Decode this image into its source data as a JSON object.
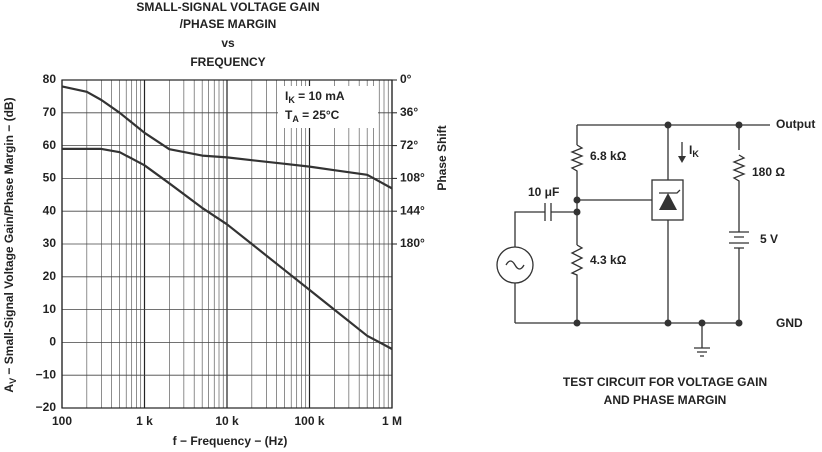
{
  "chart_data": {
    "type": "line",
    "title": [
      "SMALL-SIGNAL VOLTAGE GAIN",
      "/PHASE MARGIN",
      "vs",
      "FREQUENCY"
    ],
    "xlabel": "f − Frequency − (Hz)",
    "ylabel": {
      "main": "A",
      "sub": "V",
      "rest": " − Small-Signal Voltage Gain/Phase Margin − (dB)"
    },
    "y2label": "Phase Shift",
    "annotations": [
      {
        "main": "I",
        "sub": "K",
        "rest": " = 10 mA"
      },
      {
        "main": "T",
        "sub": "A",
        "rest": " = 25°C"
      }
    ],
    "x": [
      100,
      200,
      300,
      500,
      1000,
      2000,
      5000,
      10000,
      20000,
      50000,
      100000,
      200000,
      500000,
      1000000
    ],
    "series": [
      {
        "color": "#333333",
        "values": [
          59,
          59,
          59,
          58,
          54,
          48.5,
          41,
          36,
          30,
          22,
          16,
          10,
          2,
          -2
        ]
      },
      {
        "color": "#333333",
        "axis": "y2",
        "values": [
          7,
          13,
          22,
          36,
          58,
          76,
          83,
          85,
          88,
          92,
          95,
          99,
          104,
          119
        ]
      }
    ],
    "xscale": "log",
    "xlim": [
      100,
      1000000
    ],
    "xticks": [
      100,
      {
        "value": 1000,
        "label": "1 k"
      },
      {
        "value": 10000,
        "label": "10 k"
      },
      {
        "value": 100000,
        "label": "100 k"
      },
      {
        "value": 1000000,
        "label": "1 M"
      }
    ],
    "xminorticks": [
      200,
      300,
      400,
      500,
      600,
      700,
      800,
      900,
      2000,
      3000,
      4000,
      5000,
      6000,
      7000,
      8000,
      9000,
      20000,
      30000,
      40000,
      50000,
      60000,
      70000,
      80000,
      90000,
      200000,
      300000,
      400000,
      500000,
      600000,
      700000,
      800000,
      900000
    ],
    "ylim": [
      -20,
      80
    ],
    "yticks": [
      {
        "value": -20,
        "label": "−20"
      },
      {
        "value": -10,
        "label": "−10"
      },
      0,
      10,
      20,
      30,
      40,
      50,
      60,
      70,
      80
    ],
    "y2lim": [
      360,
      0
    ],
    "y2ticks": [
      {
        "value": 0,
        "label": "0°"
      },
      {
        "value": 36,
        "label": "36°"
      },
      {
        "value": 72,
        "label": "72°"
      },
      {
        "value": 108,
        "label": "108°"
      },
      {
        "value": 144,
        "label": "144°"
      },
      {
        "value": 180,
        "label": "180°"
      }
    ],
    "grid": true
  },
  "circuit": {
    "output": "Output",
    "gnd": "GND",
    "r1": "6.8 kΩ",
    "r2": "4.3 kΩ",
    "r3": "180 Ω",
    "c": "10 μF",
    "v": "5 V",
    "current": {
      "main": "I",
      "sub": "K"
    },
    "caption": [
      "TEST CIRCUIT FOR VOLTAGE GAIN",
      "AND PHASE MARGIN"
    ]
  }
}
